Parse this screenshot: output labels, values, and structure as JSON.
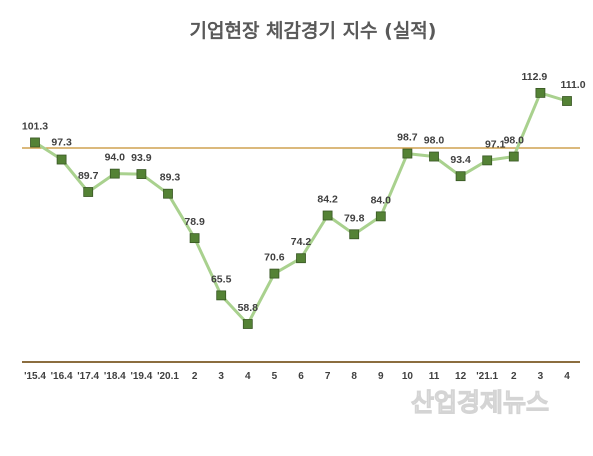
{
  "chart_data": {
    "type": "line",
    "title": "기업현장 체감경기 지수 (실적)",
    "categories": [
      "'15.4",
      "'16.4",
      "'17.4",
      "'18.4",
      "'19.4",
      "'20.1",
      "2",
      "3",
      "4",
      "5",
      "6",
      "7",
      "8",
      "9",
      "10",
      "11",
      "12",
      "'21.1",
      "2",
      "3",
      "4"
    ],
    "series": [
      {
        "values": [
          101.3,
          97.3,
          89.7,
          94.0,
          93.9,
          89.3,
          78.9,
          65.5,
          58.8,
          70.6,
          74.2,
          84.2,
          79.8,
          84.0,
          98.7,
          98.0,
          93.4,
          97.1,
          98.0,
          112.9,
          111.0
        ],
        "labels": [
          "101.3",
          "97.3",
          "89.7",
          "94.0",
          "93.9",
          "89.3",
          "78.9",
          "65.5",
          "58.8",
          "70.6",
          "74.2",
          "84.2",
          "79.8",
          "84.0",
          "98.7",
          "98.0",
          "93.4",
          "97.1",
          "98.0",
          "112.9",
          "111.0"
        ]
      }
    ],
    "reference_line": 100,
    "ylim": [
      40,
      120
    ],
    "grid": false,
    "legend": "none",
    "colors": {
      "line": "#a9d18e",
      "marker_fill": "#548235",
      "marker_stroke": "#375623",
      "reference": "#c58f2f",
      "axis": "#8b6d3f"
    }
  },
  "watermark": "산업경제뉴스"
}
